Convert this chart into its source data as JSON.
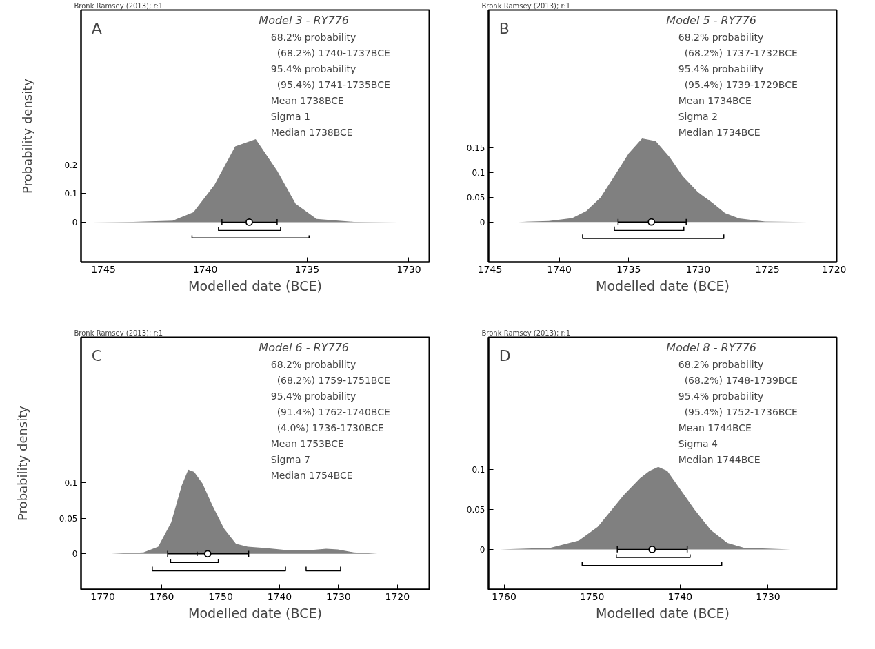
{
  "chart_data": [
    {
      "type": "area",
      "title": "Model 3 - RY776",
      "xlabel": "Modelled date (BCE)",
      "ylabel": "Probability density",
      "annotations": [
        "Bronk Ramsey (2013); r:1",
        "A",
        "68.2% probability",
        "  (68.2%) 1740-1737BCE",
        "95.4% probability",
        "  (95.4%) 1741-1735BCE",
        "Mean 1738BCE",
        "Sigma 1",
        "Median 1738BCE"
      ],
      "xlim": [
        1746.1,
        1729.0
      ],
      "xticks": [
        1745,
        1740,
        1735,
        1730
      ],
      "ylim": [
        -0.14,
        0.742
      ],
      "yticks": [
        0,
        0.1,
        0.2
      ],
      "grid": false,
      "legend": false,
      "series": [
        {
          "color": "#808080",
          "x": [
            1745.6,
            1743.55,
            1741.6,
            1740.58,
            1739.55,
            1738.53,
            1737.52,
            1736.47,
            1735.56,
            1734.53,
            1732.7,
            1730.48
          ],
          "values": [
            0,
            0.001,
            0.005,
            0.035,
            0.13,
            0.265,
            0.29,
            0.18,
            0.064,
            0.011,
            0.001,
            0
          ]
        },
        {
          "type": "scatter",
          "marker": "circle",
          "color": "#000000",
          "x": [
            1737.84
          ],
          "values": [
            0
          ],
          "xerrors": [
            [
              1739.18,
              1736.47
            ]
          ]
        },
        {
          "type": "line",
          "color": "#000000",
          "x": [
            1739.35,
            1739.35,
            1736.3,
            1736.3
          ],
          "values": [
            -0.017,
            -0.029,
            -0.029,
            -0.017
          ]
        },
        {
          "type": "line",
          "color": "#000000",
          "x": [
            1740.65,
            1740.65,
            1734.9,
            1734.9
          ],
          "values": [
            -0.046,
            -0.055,
            -0.055,
            -0.046
          ]
        }
      ]
    },
    {
      "type": "area",
      "title": "Model 5 - RY776",
      "xlabel": "Modelled date (BCE)",
      "annotations": [
        "Bronk Ramsey (2013); r:1",
        "B",
        "68.2% probability",
        "  (68.2%) 1737-1732BCE",
        "95.4% probability",
        "  (95.4%) 1739-1729BCE",
        "Mean 1734BCE",
        "Sigma 2",
        "Median 1734BCE"
      ],
      "xlim": [
        1745.1,
        1720.0
      ],
      "xticks": [
        1745,
        1740,
        1735,
        1730,
        1725,
        1720
      ],
      "ylim": [
        -0.081,
        0.427
      ],
      "yticks": [
        0,
        0.05,
        0.1,
        0.15
      ],
      "grid": false,
      "legend": false,
      "series": [
        {
          "color": "#808080",
          "x": [
            1742.97,
            1740.76,
            1739.07,
            1738.05,
            1737.03,
            1736.02,
            1735.0,
            1734.03,
            1733.05,
            1732.03,
            1731.1,
            1730.0,
            1728.98,
            1728.05,
            1727.03,
            1725.17,
            1722.12
          ],
          "values": [
            0,
            0.002,
            0.008,
            0.022,
            0.049,
            0.093,
            0.138,
            0.168,
            0.163,
            0.13,
            0.092,
            0.06,
            0.039,
            0.018,
            0.007,
            0.001,
            0
          ]
        },
        {
          "type": "scatter",
          "marker": "circle",
          "color": "#000000",
          "x": [
            1733.36
          ],
          "values": [
            0
          ],
          "xerrors": [
            [
              1735.76,
              1730.85
            ]
          ]
        },
        {
          "type": "line",
          "color": "#000000",
          "x": [
            1736.03,
            1736.03,
            1731.02,
            1731.02
          ],
          "values": [
            -0.009,
            -0.017,
            -0.017,
            -0.009
          ]
        },
        {
          "type": "line",
          "color": "#000000",
          "x": [
            1738.32,
            1738.32,
            1728.14,
            1728.14
          ],
          "values": [
            -0.025,
            -0.033,
            -0.033,
            -0.025
          ]
        }
      ]
    },
    {
      "type": "area",
      "title": "Model 6 - RY776",
      "xlabel": "Modelled date (BCE)",
      "ylabel": "Probability density",
      "annotations": [
        "Bronk Ramsey (2013); r:1",
        "C",
        "68.2% probability",
        "  (68.2%) 1759-1751BCE",
        "95.4% probability",
        "  (91.4%) 1762-1740BCE",
        "  (4.0%) 1736-1730BCE",
        "Mean 1753BCE",
        "Sigma 7",
        "Median 1754BCE"
      ],
      "xlim": [
        1773.7,
        1714.6
      ],
      "xticks": [
        1770,
        1760,
        1750,
        1740,
        1730,
        1720
      ],
      "ylim": [
        -0.05,
        0.304
      ],
      "yticks": [
        0,
        0.05,
        0.1
      ],
      "grid": false,
      "legend": false,
      "series": [
        {
          "color": "#808080",
          "x": [
            1768.6,
            1763.1,
            1760.6,
            1758.4,
            1756.6,
            1755.5,
            1754.5,
            1753.1,
            1751.35,
            1749.4,
            1747.4,
            1745.4,
            1742.3,
            1738.4,
            1735.2,
            1732.1,
            1730.1,
            1727.4,
            1723.4,
            1716.8
          ],
          "values": [
            0,
            0.002,
            0.01,
            0.044,
            0.096,
            0.118,
            0.115,
            0.099,
            0.067,
            0.035,
            0.014,
            0.01,
            0.008,
            0.005,
            0.005,
            0.007,
            0.006,
            0.002,
            0,
            0
          ]
        },
        {
          "type": "scatter",
          "marker": "circle",
          "color": "#000000",
          "x": [
            1752.2
          ],
          "values": [
            0
          ],
          "xerrors": [
            [
              1759.0,
              1745.25
            ]
          ]
        },
        {
          "type": "line",
          "color": "#000000",
          "x": [
            1754.0,
            1754.0
          ],
          "values": [
            -0.003,
            0.003
          ]
        },
        {
          "type": "line",
          "color": "#000000",
          "x": [
            1758.5,
            1758.5,
            1750.4,
            1750.4
          ],
          "values": [
            -0.007,
            -0.012,
            -0.012,
            -0.007
          ]
        },
        {
          "type": "line",
          "color": "#000000",
          "x": [
            1761.6,
            1761.6,
            1739.0,
            1739.0
          ],
          "values": [
            -0.018,
            -0.024,
            -0.024,
            -0.018
          ]
        },
        {
          "type": "line",
          "color": "#000000",
          "x": [
            1735.5,
            1735.5,
            1729.65,
            1729.65
          ],
          "values": [
            -0.018,
            -0.024,
            -0.024,
            -0.018
          ]
        }
      ]
    },
    {
      "type": "area",
      "title": "Model 8 - RY776",
      "xlabel": "Modelled date (BCE)",
      "annotations": [
        "Bronk Ramsey (2013); r:1",
        "D",
        "68.2% probability",
        "  (68.2%) 1748-1739BCE",
        "95.4% probability",
        "  (95.4%) 1752-1736BCE",
        "Mean 1744BCE",
        "Sigma 4",
        "Median 1744BCE"
      ],
      "xlim": [
        1761.77,
        1722.2
      ],
      "xticks": [
        1760,
        1750,
        1740,
        1730
      ],
      "ylim": [
        -0.05,
        0.265
      ],
      "yticks": [
        0,
        0.05,
        0.1
      ],
      "grid": false,
      "legend": false,
      "series": [
        {
          "color": "#808080",
          "x": [
            1760.5,
            1757.4,
            1754.7,
            1751.5,
            1749.37,
            1746.4,
            1744.54,
            1743.47,
            1742.48,
            1741.46,
            1739.59,
            1738.38,
            1736.5,
            1734.63,
            1732.76,
            1727.4
          ],
          "values": [
            0,
            0.001,
            0.002,
            0.011,
            0.028,
            0.068,
            0.089,
            0.098,
            0.103,
            0.098,
            0.069,
            0.05,
            0.024,
            0.008,
            0.002,
            0
          ]
        },
        {
          "type": "scatter",
          "marker": "circle",
          "color": "#000000",
          "x": [
            1743.18
          ],
          "values": [
            0
          ],
          "xerrors": [
            [
              1747.14,
              1739.19
            ]
          ]
        },
        {
          "type": "line",
          "color": "#000000",
          "x": [
            1747.25,
            1747.25,
            1738.86,
            1738.86
          ],
          "values": [
            -0.006,
            -0.01,
            -0.01,
            -0.006
          ]
        },
        {
          "type": "line",
          "color": "#000000",
          "x": [
            1751.13,
            1751.13,
            1735.27,
            1735.27
          ],
          "values": [
            -0.016,
            -0.02,
            -0.02,
            -0.016
          ]
        }
      ]
    }
  ]
}
